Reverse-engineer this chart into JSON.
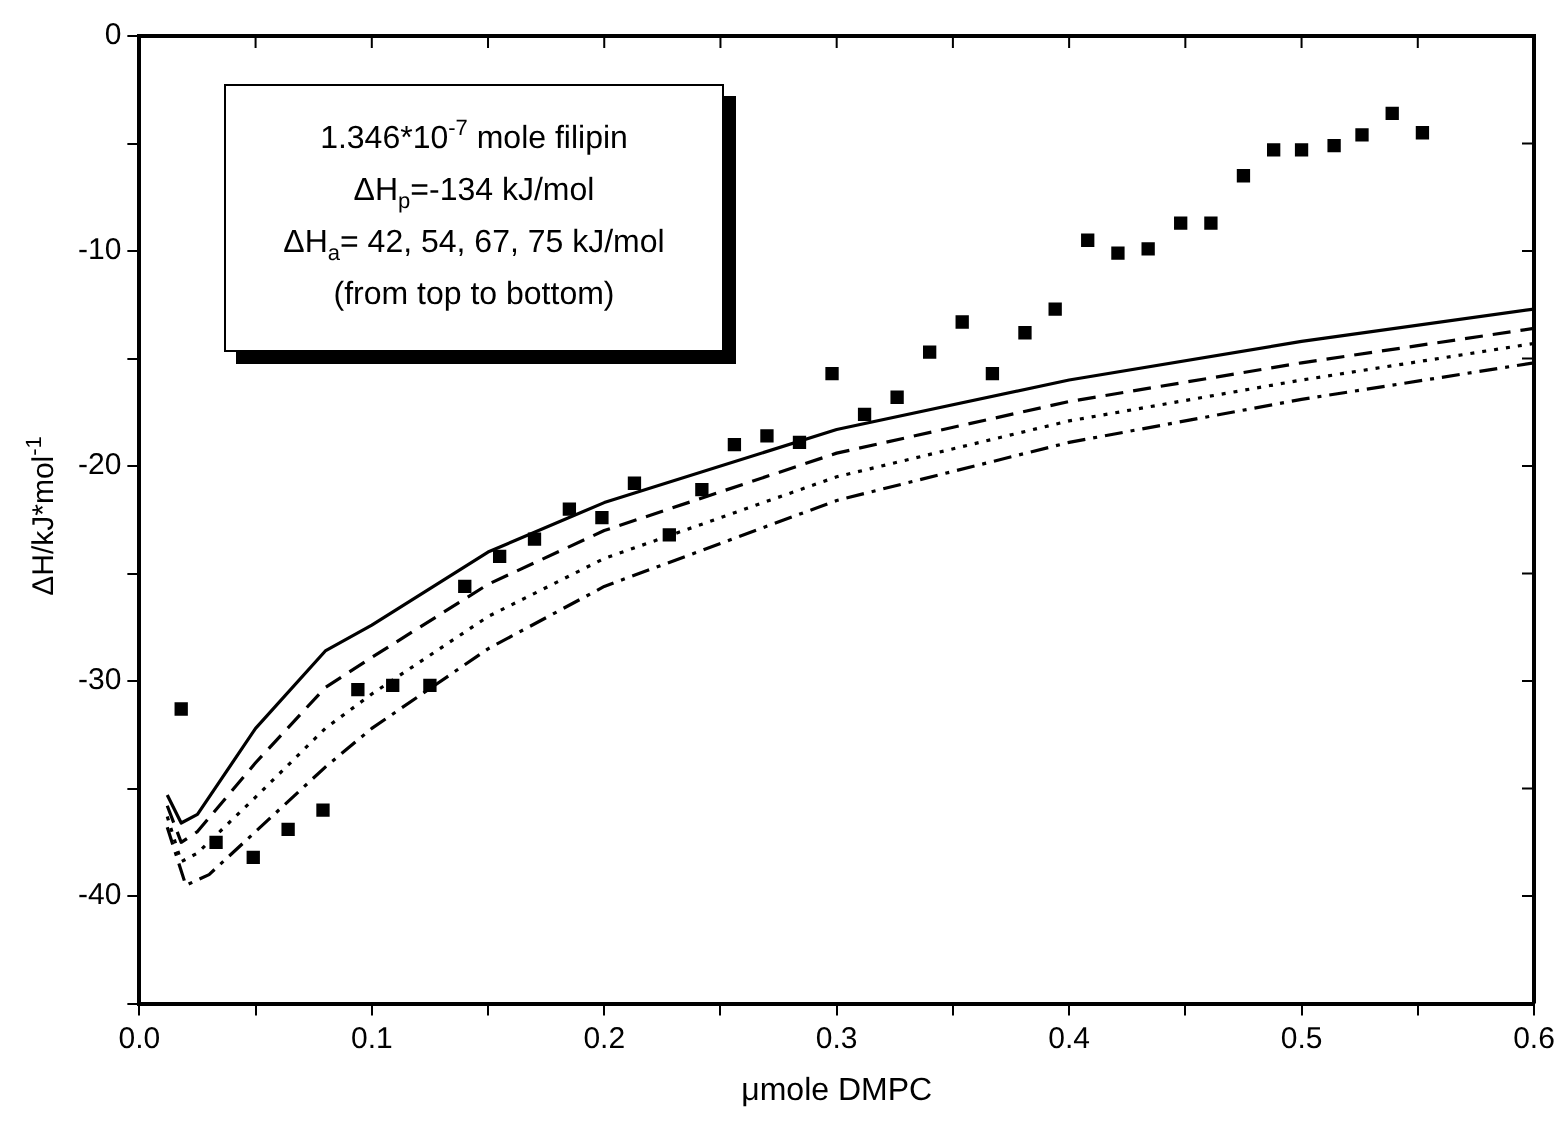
{
  "chart_data": {
    "type": "scatter",
    "xlabel": "μmole DMPC",
    "ylabel": "ΔH/kJ*mol$^{-1}$",
    "annotations": [
      "1.346*10$^{-7}$ mole filipin",
      "ΔH$_{p}$=-134 kJ/mol",
      "ΔH$_{a}$= 42, 54, 67, 75 kJ/mol",
      "(from top to bottom)"
    ],
    "xlim": [
      0,
      0.6
    ],
    "xticks": [
      {
        "value": 0,
        "label": "0.0"
      },
      {
        "value": 0.05,
        "label": null
      },
      0.1,
      {
        "value": 0.15,
        "label": null
      },
      0.2,
      {
        "value": 0.25,
        "label": null
      },
      0.3,
      {
        "value": 0.35,
        "label": null
      },
      0.4,
      {
        "value": 0.45,
        "label": null
      },
      0.5,
      {
        "value": 0.55,
        "label": null
      },
      0.6
    ],
    "ylim": [
      -45,
      0
    ],
    "yticks": [
      {
        "value": -45,
        "label": null
      },
      -40,
      {
        "value": -35,
        "label": null
      },
      -30,
      {
        "value": -25,
        "label": null
      },
      -20,
      {
        "value": -15,
        "label": null
      },
      -10,
      {
        "value": -5,
        "label": null
      },
      0
    ],
    "grid": false,
    "legend": false,
    "series": [
      {
        "color": "#000000",
        "marker": "square",
        "x": [
          0.018,
          0.033,
          0.049,
          0.064,
          0.079,
          0.094,
          0.109,
          0.125,
          0.14,
          0.155,
          0.17,
          0.185,
          0.199,
          0.213,
          0.228,
          0.242,
          0.256,
          0.27,
          0.284,
          0.298,
          0.312,
          0.326,
          0.34,
          0.354,
          0.367,
          0.381,
          0.394,
          0.408,
          0.421,
          0.434,
          0.448,
          0.461,
          0.475,
          0.488,
          0.5,
          0.514,
          0.526,
          0.539,
          0.552
        ],
        "values": [
          -31.3,
          -37.5,
          -38.2,
          -36.9,
          -36.0,
          -30.4,
          -30.2,
          -30.2,
          -25.6,
          -24.2,
          -23.4,
          -22.0,
          -22.4,
          -20.8,
          -23.2,
          -21.1,
          -19.0,
          -18.6,
          -18.9,
          -15.7,
          -17.6,
          -16.8,
          -14.7,
          -13.3,
          -15.7,
          -13.8,
          -12.7,
          -9.5,
          -10.1,
          -9.9,
          -8.7,
          -8.7,
          -6.5,
          -5.3,
          -5.3,
          -5.1,
          -4.6,
          -3.6,
          -4.5
        ]
      },
      {
        "type": "line",
        "color": "#000000",
        "marker": "none",
        "line_style": "solid",
        "x": [
          0.012,
          0.018,
          0.025,
          0.05,
          0.08,
          0.1,
          0.15,
          0.2,
          0.3,
          0.4,
          0.5,
          0.6
        ],
        "values": [
          -35.3,
          -36.6,
          -36.2,
          -32.2,
          -28.6,
          -27.4,
          -24.0,
          -21.7,
          -18.3,
          -16.0,
          -14.2,
          -12.7
        ]
      },
      {
        "type": "line",
        "color": "#000000",
        "marker": "none",
        "line_style": "dashed",
        "x": [
          0.012,
          0.018,
          0.025,
          0.05,
          0.08,
          0.1,
          0.15,
          0.2,
          0.3,
          0.4,
          0.5,
          0.6
        ],
        "values": [
          -35.8,
          -37.5,
          -37.0,
          -33.8,
          -30.3,
          -28.9,
          -25.5,
          -23.0,
          -19.4,
          -17.0,
          -15.2,
          -13.6
        ]
      },
      {
        "type": "line",
        "color": "#000000",
        "marker": "none",
        "line_style": "dotted",
        "x": [
          0.012,
          0.018,
          0.025,
          0.05,
          0.08,
          0.1,
          0.15,
          0.2,
          0.3,
          0.4,
          0.5,
          0.6
        ],
        "values": [
          -36.3,
          -38.4,
          -38.0,
          -35.4,
          -32.2,
          -30.6,
          -27.0,
          -24.3,
          -20.5,
          -17.9,
          -16.0,
          -14.3
        ]
      },
      {
        "type": "line",
        "color": "#000000",
        "marker": "none",
        "line_style": "dashdot",
        "x": [
          0.012,
          0.02,
          0.03,
          0.05,
          0.08,
          0.1,
          0.15,
          0.2,
          0.3,
          0.4,
          0.5,
          0.6
        ],
        "values": [
          -36.8,
          -39.5,
          -39.0,
          -37.0,
          -34.0,
          -32.2,
          -28.5,
          -25.6,
          -21.6,
          -18.9,
          -16.9,
          -15.2
        ]
      }
    ]
  }
}
